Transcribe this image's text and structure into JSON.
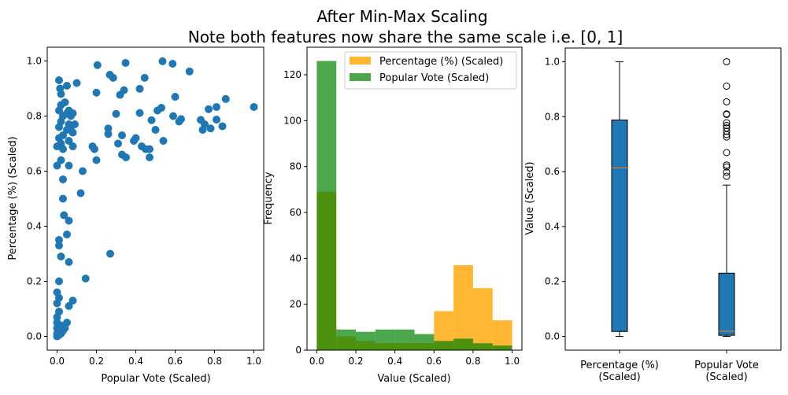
{
  "chart_data": [
    {
      "type": "scatter",
      "title_lines": [
        "After Min-Max Scaling",
        "Note both features now share the same scale i.e. [0, 1]"
      ],
      "xlabel": "Popular Vote (Scaled)",
      "ylabel": "Percentage (%) (Scaled)",
      "xlim": [
        -0.05,
        1.05
      ],
      "ylim": [
        -0.05,
        1.05
      ],
      "xticks": [
        "0.0",
        "0.2",
        "0.4",
        "0.6",
        "0.8",
        "1.0"
      ],
      "yticks": [
        "0.0",
        "0.2",
        "0.4",
        "0.6",
        "0.8",
        "1.0"
      ],
      "color": "#1f77b4",
      "points": [
        [
          0.205,
          0.985
        ],
        [
          0.348,
          0.993
        ],
        [
          0.536,
          0.999
        ],
        [
          0.587,
          0.99
        ],
        [
          0.673,
          0.962
        ],
        [
          0.268,
          0.95
        ],
        [
          0.285,
          0.939
        ],
        [
          0.445,
          0.939
        ],
        [
          0.2,
          0.885
        ],
        [
          0.34,
          0.894
        ],
        [
          0.32,
          0.877
        ],
        [
          0.42,
          0.899
        ],
        [
          0.6,
          0.87
        ],
        [
          0.857,
          0.862
        ],
        [
          1.0,
          0.833
        ],
        [
          0.81,
          0.833
        ],
        [
          0.77,
          0.825
        ],
        [
          0.53,
          0.83
        ],
        [
          0.51,
          0.82
        ],
        [
          0.42,
          0.811
        ],
        [
          0.3,
          0.808
        ],
        [
          0.59,
          0.8
        ],
        [
          0.63,
          0.789
        ],
        [
          0.62,
          0.78
        ],
        [
          0.48,
          0.785
        ],
        [
          0.73,
          0.786
        ],
        [
          0.81,
          0.787
        ],
        [
          0.75,
          0.77
        ],
        [
          0.78,
          0.755
        ],
        [
          0.74,
          0.75
        ],
        [
          0.84,
          0.763
        ],
        [
          0.5,
          0.75
        ],
        [
          0.26,
          0.755
        ],
        [
          0.26,
          0.735
        ],
        [
          0.33,
          0.73
        ],
        [
          0.4,
          0.72
        ],
        [
          0.39,
          0.71
        ],
        [
          0.54,
          0.71
        ],
        [
          0.31,
          0.7
        ],
        [
          0.43,
          0.69
        ],
        [
          0.45,
          0.68
        ],
        [
          0.47,
          0.68
        ],
        [
          0.18,
          0.69
        ],
        [
          0.19,
          0.68
        ],
        [
          0.33,
          0.66
        ],
        [
          0.35,
          0.65
        ],
        [
          0.47,
          0.65
        ],
        [
          0.2,
          0.64
        ],
        [
          0.13,
          0.6
        ],
        [
          0.12,
          0.52
        ],
        [
          0.27,
          0.3
        ],
        [
          0.145,
          0.21
        ],
        [
          0.01,
          0.93
        ],
        [
          0.015,
          0.9
        ],
        [
          0.1,
          0.92
        ],
        [
          0.05,
          0.91
        ],
        [
          0.02,
          0.88
        ],
        [
          0.04,
          0.85
        ],
        [
          0.02,
          0.84
        ],
        [
          0.01,
          0.82
        ],
        [
          0.03,
          0.8
        ],
        [
          0.05,
          0.81
        ],
        [
          0.07,
          0.8
        ],
        [
          0.08,
          0.81
        ],
        [
          0.06,
          0.82
        ],
        [
          0.02,
          0.78
        ],
        [
          0.01,
          0.76
        ],
        [
          0.06,
          0.77
        ],
        [
          0.07,
          0.76
        ],
        [
          0.09,
          0.77
        ],
        [
          0.05,
          0.75
        ],
        [
          0.08,
          0.74
        ],
        [
          0.03,
          0.73
        ],
        [
          0.01,
          0.72
        ],
        [
          0.02,
          0.7
        ],
        [
          0.06,
          0.71
        ],
        [
          0.08,
          0.69
        ],
        [
          0.0,
          0.69
        ],
        [
          0.03,
          0.68
        ],
        [
          0.02,
          0.64
        ],
        [
          0.0,
          0.62
        ],
        [
          0.06,
          0.62
        ],
        [
          0.03,
          0.57
        ],
        [
          0.03,
          0.5
        ],
        [
          0.035,
          0.44
        ],
        [
          0.06,
          0.42
        ],
        [
          0.05,
          0.37
        ],
        [
          0.01,
          0.35
        ],
        [
          0.01,
          0.33
        ],
        [
          0.02,
          0.29
        ],
        [
          0.06,
          0.27
        ],
        [
          0.01,
          0.2
        ],
        [
          0.0,
          0.16
        ],
        [
          0.01,
          0.14
        ],
        [
          0.0,
          0.12
        ],
        [
          0.08,
          0.13
        ],
        [
          0.06,
          0.11
        ],
        [
          0.01,
          0.09
        ],
        [
          0.0,
          0.07
        ],
        [
          0.0,
          0.05
        ],
        [
          0.02,
          0.04
        ],
        [
          0.05,
          0.05
        ],
        [
          0.0,
          0.03
        ],
        [
          0.01,
          0.02
        ],
        [
          0.0,
          0.01
        ],
        [
          0.0,
          0.0
        ],
        [
          0.02,
          0.01
        ],
        [
          0.03,
          0.02
        ],
        [
          0.01,
          0.005
        ],
        [
          0.04,
          0.03
        ]
      ]
    },
    {
      "type": "bar",
      "subtype": "histogram",
      "xlabel": "Value (Scaled)",
      "ylabel": "Frequency",
      "xlim": [
        -0.05,
        1.05
      ],
      "ylim": [
        0,
        132
      ],
      "xticks": [
        "0.0",
        "0.2",
        "0.4",
        "0.6",
        "0.8",
        "1.0"
      ],
      "yticks": [
        "0",
        "20",
        "40",
        "60",
        "80",
        "100",
        "120"
      ],
      "bin_edges": [
        0,
        0.1,
        0.2,
        0.3,
        0.4,
        0.5,
        0.6,
        0.7,
        0.8,
        0.9,
        1.0
      ],
      "legend_position": "top-right",
      "series": [
        {
          "name": "Percentage (%) (Scaled)",
          "color": "#ffa500",
          "alpha": 0.8,
          "values": [
            69,
            6,
            4,
            3,
            3,
            3,
            17,
            37,
            27,
            13
          ]
        },
        {
          "name": "Popular Vote (Scaled)",
          "color": "#008000",
          "alpha": 0.7,
          "values": [
            126,
            9,
            8,
            9,
            9,
            7,
            4,
            5,
            3,
            2
          ]
        }
      ]
    },
    {
      "type": "box",
      "ylabel": "Value (Scaled)",
      "ylim": [
        -0.05,
        1.05
      ],
      "yticks": [
        "0.0",
        "0.2",
        "0.4",
        "0.6",
        "0.8",
        "1.0"
      ],
      "box_color": "#1f77b4",
      "median_color": "#ff7f0e",
      "boxes": [
        {
          "label_lines": [
            "Percentage (%)",
            "(Scaled)"
          ],
          "whisker_low": 0.0,
          "q1": 0.018,
          "median": 0.614,
          "q3": 0.788,
          "whisker_high": 1.0,
          "outliers": []
        },
        {
          "label_lines": [
            "Popular Vote",
            "(Scaled)"
          ],
          "whisker_low": 0.0,
          "q1": 0.004,
          "median": 0.019,
          "q3": 0.23,
          "whisker_high": 0.551,
          "outliers": [
            1.0,
            0.911,
            0.854,
            0.81,
            0.808,
            0.778,
            0.768,
            0.759,
            0.747,
            0.735,
            0.726,
            0.669,
            0.624,
            0.617,
            0.598,
            0.583
          ]
        }
      ]
    }
  ]
}
